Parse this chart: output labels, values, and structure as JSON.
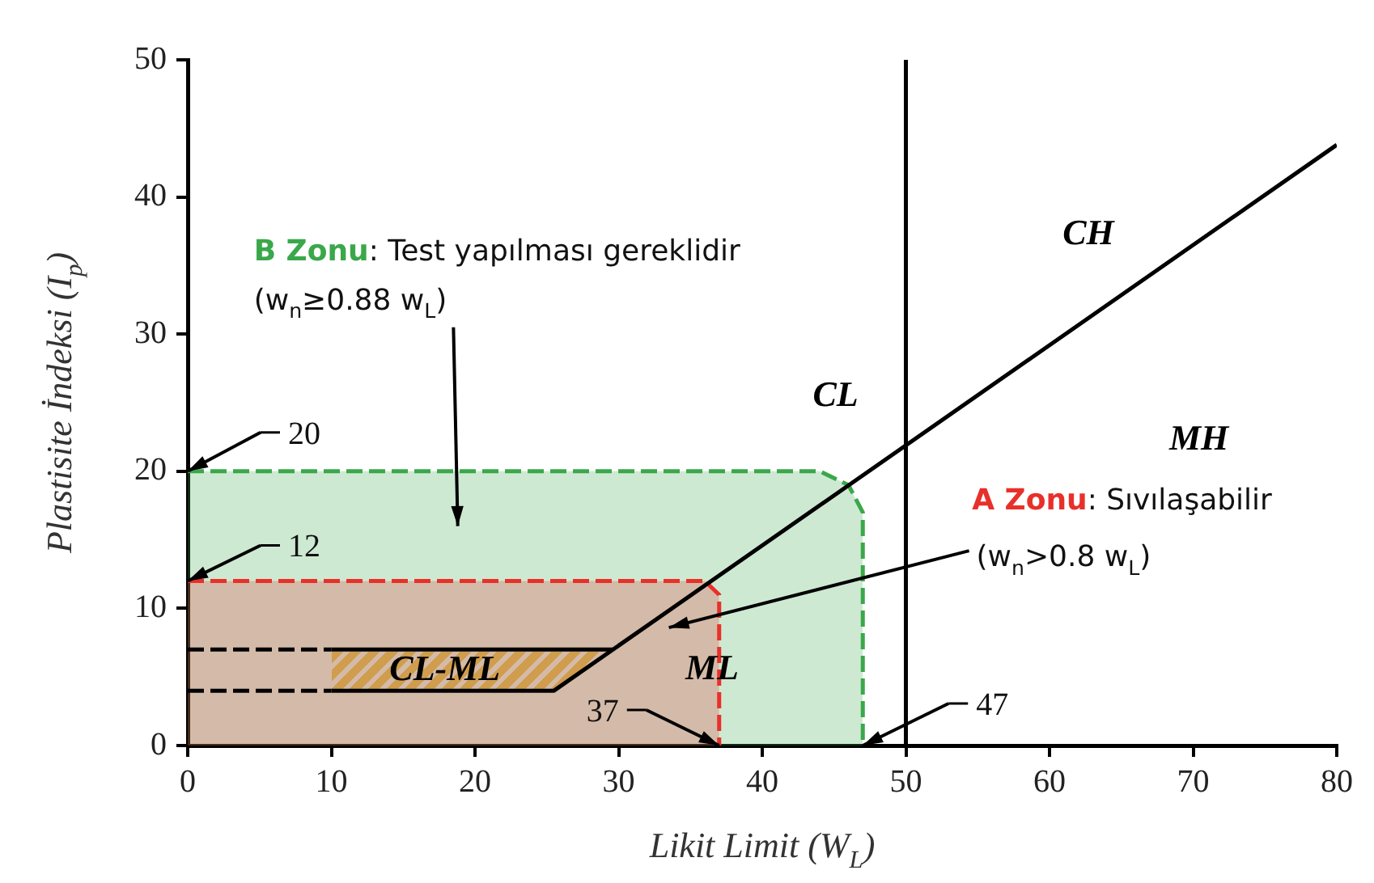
{
  "chart_data": {
    "type": "line",
    "xlabel": "Likit Limit (W$_{L}$)",
    "ylabel": "Plastisite İndeksi (I$_{p}$)",
    "xlim": [
      0,
      80
    ],
    "xticks": [
      0,
      10,
      20,
      30,
      40,
      50,
      60,
      70,
      80
    ],
    "ylim": [
      0,
      50
    ],
    "yticks": [
      0,
      10,
      20,
      30,
      40,
      50
    ],
    "grid": false,
    "legend": false,
    "marker": "none",
    "series": [
      {
        "type": "area",
        "name": "B Zonu",
        "color": "#3aa84a",
        "line_style": "dashed",
        "x": [
          0,
          44,
          46,
          47,
          47
        ],
        "values": [
          20,
          20,
          19,
          17,
          0
        ]
      },
      {
        "type": "area",
        "name": "A Zonu",
        "color": "#e8302a",
        "line_style": "dashed",
        "x": [
          0,
          36,
          37,
          37
        ],
        "values": [
          12,
          12,
          11,
          0
        ]
      },
      {
        "type": "line",
        "color": "#000000",
        "x": [
          10,
          25.5,
          80
        ],
        "values": [
          4,
          4,
          43.8
        ]
      },
      {
        "type": "line",
        "color": "#000000",
        "x": [
          10,
          29.6
        ],
        "values": [
          7,
          7
        ]
      },
      {
        "color": "#000000",
        "line_style": "dashed",
        "x": [
          0,
          10
        ],
        "values": [
          4,
          4
        ]
      },
      {
        "color": "#000000",
        "line_style": "dashed",
        "x": [
          0,
          10
        ],
        "values": [
          7,
          7
        ]
      }
    ],
    "ref_lines": [
      {
        "axis": "x",
        "value": 50,
        "color": "#000000"
      }
    ],
    "annotations": [
      "CH",
      "CL",
      "MH",
      "ML",
      "CL-ML",
      ": Test yapılması gereklidir",
      "(w$_{n}$≥0.88 w$_{L}$)",
      ": Sıvılaşabilir",
      "(w$_{n}$>0.8 w$_{L}$)",
      {
        "text": "20",
        "x": 0,
        "y": 20
      },
      {
        "text": "12",
        "x": 0,
        "y": 12
      },
      {
        "text": "37",
        "x": 37,
        "y": 0
      },
      {
        "text": "47",
        "x": 47,
        "y": 0
      }
    ]
  }
}
